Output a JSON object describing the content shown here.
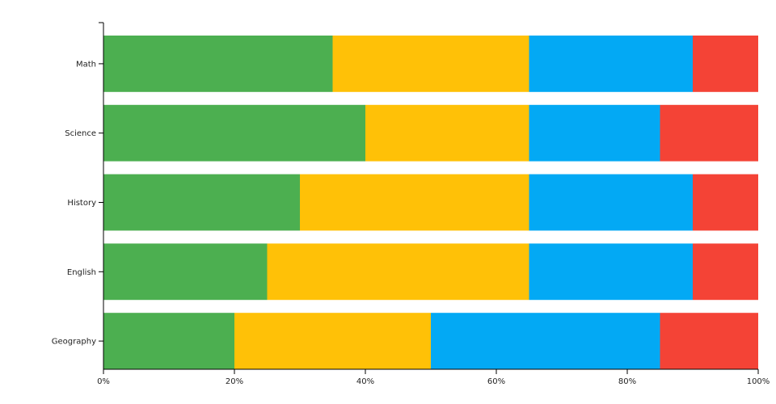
{
  "chart_data": {
    "type": "bar",
    "orientation": "horizontal",
    "stacked": "percent",
    "categories": [
      "Math",
      "Science",
      "History",
      "English",
      "Geography"
    ],
    "series": [
      {
        "values": [
          35,
          40,
          30,
          25,
          20
        ],
        "color": "#4caf50"
      },
      {
        "values": [
          30,
          25,
          35,
          40,
          30
        ],
        "color": "#ffc107"
      },
      {
        "values": [
          25,
          20,
          25,
          25,
          35
        ],
        "color": "#03a9f4"
      },
      {
        "values": [
          10,
          15,
          10,
          10,
          15
        ],
        "color": "#f44336"
      }
    ],
    "xlim": [
      0,
      100
    ],
    "x_ticks": [
      "0%",
      "20%",
      "40%",
      "60%",
      "80%",
      "100%"
    ],
    "title": "",
    "xlabel": "",
    "ylabel": "",
    "grid": false,
    "legend": "none"
  }
}
